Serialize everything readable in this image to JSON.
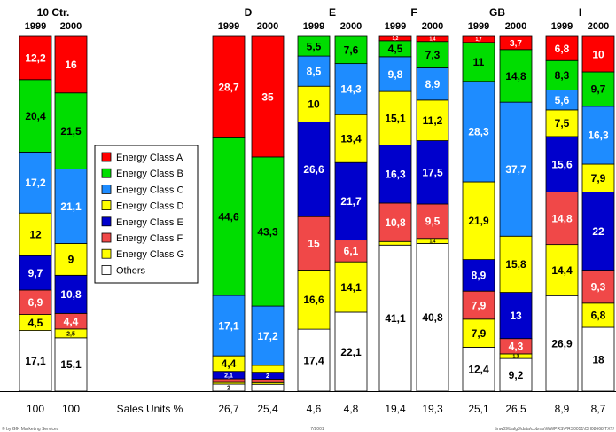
{
  "chart_data": {
    "type": "bar",
    "stacked": true,
    "percent_stacked": true,
    "grid": false,
    "legend_position": "middle-left",
    "groups": [
      {
        "name": "10 Ctr.",
        "years": [
          "1999",
          "2000"
        ],
        "units": [
          "100",
          "100"
        ]
      },
      {
        "name": "D",
        "years": [
          "1999",
          "2000"
        ],
        "units": [
          "26,7",
          "25,4"
        ]
      },
      {
        "name": "E",
        "years": [
          "1999",
          "2000"
        ],
        "units": [
          "4,6",
          "4,8"
        ]
      },
      {
        "name": "F",
        "years": [
          "1999",
          "2000"
        ],
        "units": [
          "19,4",
          "19,3"
        ]
      },
      {
        "name": "GB",
        "years": [
          "1999",
          "2000"
        ],
        "units": [
          "25,1",
          "26,5"
        ]
      },
      {
        "name": "I",
        "years": [
          "1999",
          "2000"
        ],
        "units": [
          "8,9",
          "8,7"
        ]
      }
    ],
    "units_label": "Sales Units %",
    "series": [
      {
        "name": "Energy Class A",
        "color": "#ff0000",
        "values": [
          12.2,
          16,
          28.7,
          35,
          0,
          0,
          1.2,
          1.4,
          1.7,
          3.7,
          6.8,
          10
        ],
        "labels": [
          "12,2",
          "16",
          "28,7",
          "35",
          "",
          "",
          "1,2",
          "1,4",
          "1,7",
          "3,7",
          "6,8",
          "10"
        ]
      },
      {
        "name": "Energy Class B",
        "color": "#00dd00",
        "values": [
          20.4,
          21.5,
          44.6,
          43.3,
          5.5,
          7.6,
          4.5,
          7.3,
          11,
          14.8,
          8.3,
          9.7
        ],
        "labels": [
          "20,4",
          "21,5",
          "44,6",
          "43,3",
          "5,5",
          "7,6",
          "4,5",
          "7,3",
          "11",
          "14,8",
          "8,3",
          "9,7"
        ]
      },
      {
        "name": "Energy Class C",
        "color": "#1e8cff",
        "values": [
          17.2,
          21.1,
          17.1,
          17.2,
          8.5,
          14.3,
          9.8,
          8.9,
          28.3,
          37.7,
          5.6,
          16.3
        ],
        "labels": [
          "17,2",
          "21,1",
          "17,1",
          "17,2",
          "8,5",
          "14,3",
          "9,8",
          "8,9",
          "28,3",
          "37,7",
          "5,6",
          "16,3"
        ]
      },
      {
        "name": "Energy Class D",
        "color": "#ffff00",
        "values": [
          12,
          9,
          4.4,
          2,
          10,
          13.4,
          15.1,
          11.2,
          21.9,
          15.8,
          7.5,
          7.9
        ],
        "labels": [
          "12",
          "9",
          "4,4",
          "",
          "10",
          "13,4",
          "15,1",
          "11,2",
          "21,9",
          "15,8",
          "7,5",
          "7,9"
        ]
      },
      {
        "name": "Energy Class E",
        "color": "#0000cc",
        "values": [
          9.7,
          10.8,
          2.1,
          2,
          26.6,
          21.7,
          16.3,
          17.5,
          8.9,
          13,
          15.6,
          22
        ],
        "labels": [
          "9,7",
          "10,8",
          "2,1",
          "2",
          "26,6",
          "21,7",
          "16,3",
          "17,5",
          "8,9",
          "13",
          "15,6",
          "22"
        ]
      },
      {
        "name": "Energy Class F",
        "color": "#f04848",
        "values": [
          6.9,
          4.4,
          1,
          1,
          15,
          6.1,
          10.8,
          9.5,
          7.9,
          4.3,
          14.8,
          9.3
        ],
        "labels": [
          "6,9",
          "4,4",
          "",
          "",
          "15",
          "6,1",
          "10,8",
          "9,5",
          "7,9",
          "4,3",
          "14,8",
          "9,3"
        ]
      },
      {
        "name": "Energy Class G",
        "color": "#ffff00",
        "values": [
          4.5,
          2.5,
          0.5,
          0.5,
          16.6,
          14.1,
          1,
          1.4,
          7.9,
          1.3,
          14.4,
          6.8
        ],
        "labels": [
          "4,5",
          "2,5",
          "",
          "",
          "16,6",
          "14,1",
          "",
          "1,4",
          "7,9",
          "1,3",
          "14,4",
          "6,8"
        ]
      },
      {
        "name": "Others",
        "color": "#ffffff",
        "values": [
          17.1,
          15.1,
          2,
          2,
          17.4,
          22.1,
          41.1,
          40.8,
          12.4,
          9.2,
          26.9,
          18
        ],
        "labels": [
          "17,1",
          "15,1",
          "2",
          "",
          "17,4",
          "22,1",
          "41,1",
          "40,8",
          "12,4",
          "9,2",
          "26,9",
          "18"
        ]
      }
    ],
    "footer": {
      "left": "© by GfK Marketing Services",
      "center": "7/2001",
      "right": "\\\\nw09\\bafg3\\data\\cobras\\WWPRS\\PRS0051\\CH08668.TXT/"
    }
  }
}
